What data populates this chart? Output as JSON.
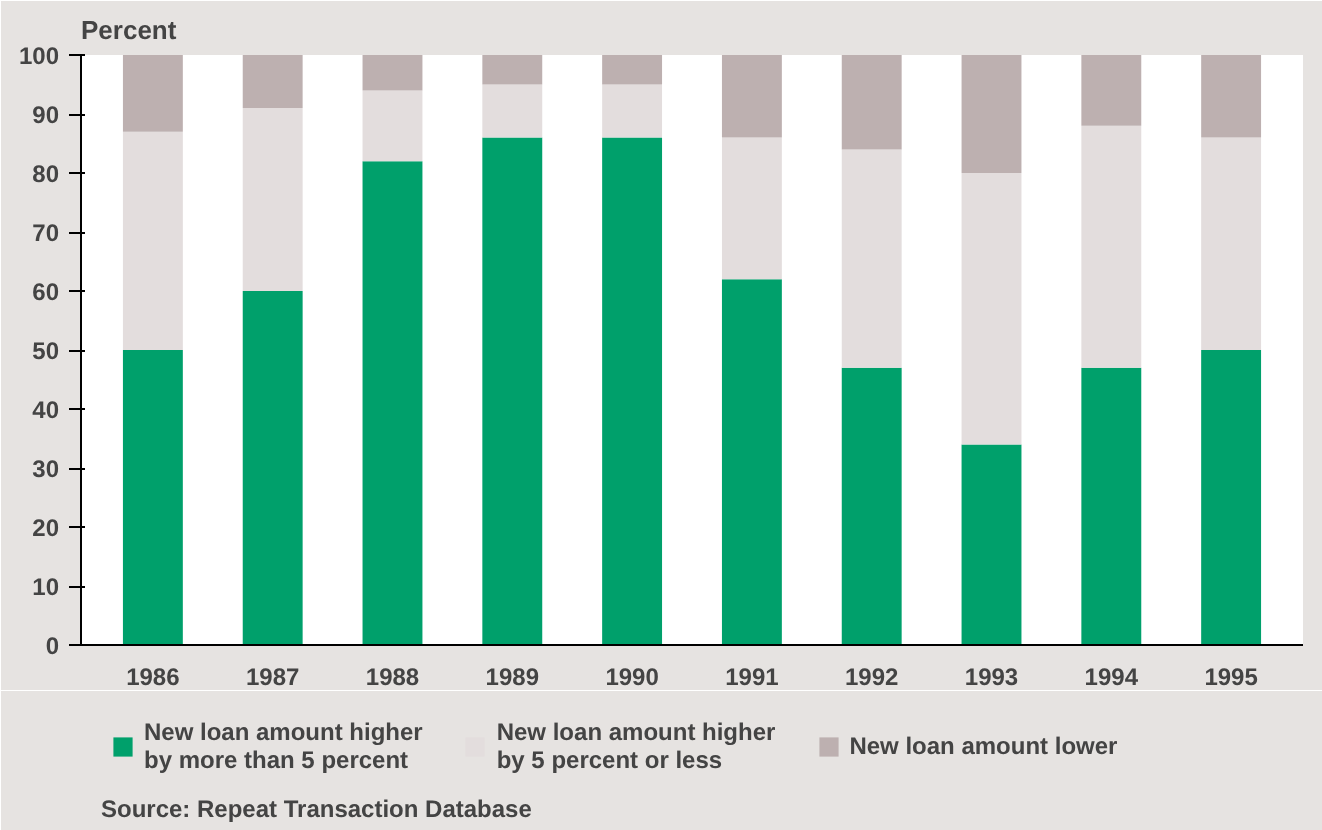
{
  "chart_data": {
    "type": "bar",
    "stacked": true,
    "ylabel": "Percent",
    "categories": [
      "1986",
      "1987",
      "1988",
      "1989",
      "1990",
      "1991",
      "1992",
      "1993",
      "1994",
      "1995"
    ],
    "series": [
      {
        "name": "New loan amount higher\nby more than 5 percent",
        "color": "#00a06b",
        "values": [
          50,
          60,
          82,
          86,
          86,
          62,
          47,
          34,
          47,
          50
        ]
      },
      {
        "name": "New loan amount higher\nby 5 percent or less",
        "color": "#e3dddd",
        "values": [
          37,
          31,
          12,
          9,
          9,
          24,
          37,
          46,
          41,
          36
        ]
      },
      {
        "name": "New loan amount lower",
        "color": "#bdb0b0",
        "values": [
          13,
          9,
          6,
          5,
          5,
          14,
          16,
          20,
          12,
          14
        ]
      }
    ],
    "ylim": [
      0,
      100
    ],
    "yticks": [
      0,
      10,
      20,
      30,
      40,
      50,
      60,
      70,
      80,
      90,
      100
    ],
    "grid": false,
    "legend": "bottom",
    "annotations": [
      "Source: Repeat Transaction Database"
    ]
  }
}
